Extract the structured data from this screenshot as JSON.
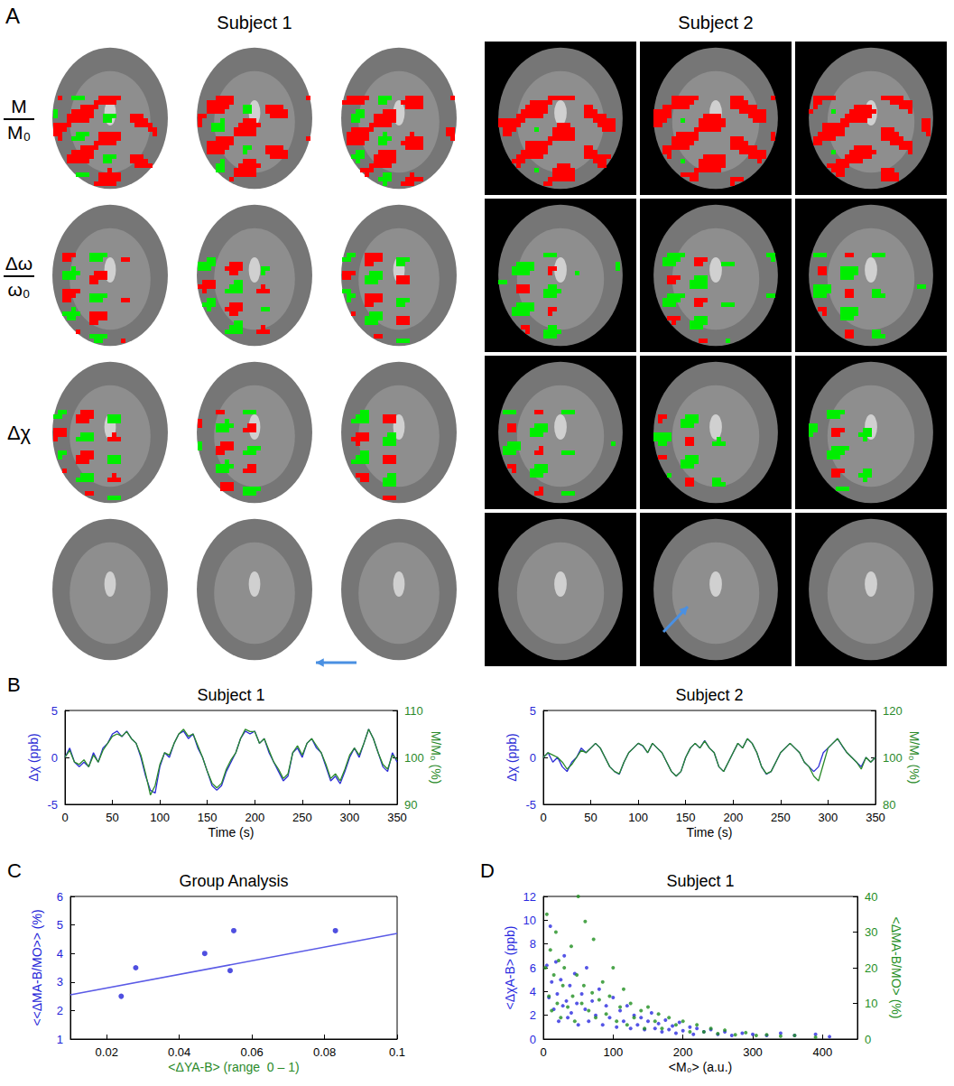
{
  "figure": {
    "panel_A": {
      "letter": "A",
      "columns": [
        "Subject 1",
        "Subject 2"
      ],
      "rows": [
        {
          "numerator": "M",
          "denominator": "M₀"
        },
        {
          "numerator": "Δω",
          "denominator": "ω₀"
        },
        {
          "label": "Δχ"
        }
      ]
    }
  },
  "chart_data": [
    {
      "panel": "B",
      "type": "line",
      "title": "Subject 1",
      "x_label": "Time (s)",
      "y_label": "Δχ (ppb)",
      "y2_label": "M/M₀ (%)",
      "x": [
        0,
        5,
        10,
        15,
        20,
        25,
        30,
        35,
        40,
        45,
        50,
        55,
        60,
        65,
        70,
        75,
        80,
        85,
        90,
        95,
        100,
        105,
        110,
        115,
        120,
        125,
        130,
        135,
        140,
        145,
        150,
        155,
        160,
        165,
        170,
        175,
        180,
        185,
        190,
        195,
        200,
        205,
        210,
        215,
        220,
        225,
        230,
        235,
        240,
        245,
        250,
        255,
        260,
        265,
        270,
        275,
        280,
        285,
        290,
        295,
        300,
        305,
        310,
        315,
        320,
        325,
        330,
        335,
        340,
        345,
        350
      ],
      "xlim": [
        0,
        350
      ],
      "xticks": [
        0,
        50,
        100,
        150,
        200,
        250,
        300,
        350
      ],
      "ylim": [
        -5,
        5
      ],
      "yticks": [
        -5,
        0,
        5
      ],
      "y2lim": [
        90,
        110
      ],
      "y2ticks": [
        90,
        100,
        110
      ],
      "series": [
        {
          "color": "#2b2bd6",
          "values": [
            0,
            1,
            -0.5,
            -1,
            -0.5,
            -1,
            0.5,
            -0.5,
            1,
            1.5,
            2.5,
            2.8,
            2.2,
            2.8,
            2,
            1.5,
            0,
            -2,
            -3.5,
            -3.8,
            -1,
            0.5,
            0,
            1.5,
            2.5,
            2.8,
            2,
            2.5,
            1,
            0,
            -1.5,
            -3,
            -3.5,
            -3,
            -1.5,
            -0.5,
            0.5,
            2,
            2.8,
            2.5,
            2.8,
            1.5,
            2,
            0.5,
            -0.5,
            -1.5,
            -2.5,
            -2,
            0.5,
            1,
            0,
            1.5,
            2,
            1,
            0.5,
            -1,
            -2.5,
            -2,
            -2.8,
            -1.5,
            0,
            1,
            0,
            1.5,
            3,
            2,
            0.5,
            -1,
            -1.5,
            0.5,
            -0.5
          ]
        },
        {
          "color": "#2a8a2a",
          "axis": "y2",
          "values": [
            100,
            101.5,
            99,
            98.5,
            99.5,
            98,
            100.5,
            99,
            101.5,
            103,
            104.5,
            105,
            104.5,
            105.5,
            104,
            103,
            100.5,
            96.5,
            92,
            94,
            98.5,
            101,
            100.5,
            103,
            105,
            106,
            104.5,
            105,
            102.5,
            100,
            97,
            94.5,
            93.5,
            94.5,
            97.5,
            99.5,
            101,
            104,
            106,
            105.5,
            105.5,
            103,
            104,
            101.5,
            99,
            97.5,
            95.5,
            96.5,
            101,
            102.5,
            100.5,
            103,
            104,
            102.5,
            101,
            98.5,
            95.5,
            96.5,
            95,
            97.5,
            100.5,
            102,
            100.5,
            103,
            106,
            104,
            101,
            98.5,
            97.5,
            100.5,
            99.5
          ]
        }
      ]
    },
    {
      "type": "line",
      "title": "Subject 2",
      "x_label": "Time (s)",
      "y_label": "Δχ (ppb)",
      "y2_label": "M/M₀ (%)",
      "x": [
        0,
        5,
        10,
        15,
        20,
        25,
        30,
        35,
        40,
        45,
        50,
        55,
        60,
        65,
        70,
        75,
        80,
        85,
        90,
        95,
        100,
        105,
        110,
        115,
        120,
        125,
        130,
        135,
        140,
        145,
        150,
        155,
        160,
        165,
        170,
        175,
        180,
        185,
        190,
        195,
        200,
        205,
        210,
        215,
        220,
        225,
        230,
        235,
        240,
        245,
        250,
        255,
        260,
        265,
        270,
        275,
        280,
        285,
        290,
        295,
        300,
        305,
        310,
        315,
        320,
        325,
        330,
        335,
        340,
        345,
        350
      ],
      "xlim": [
        0,
        350
      ],
      "xticks": [
        0,
        50,
        100,
        150,
        200,
        250,
        300,
        350
      ],
      "ylim": [
        -5,
        5
      ],
      "yticks": [
        -5,
        0,
        5
      ],
      "y2lim": [
        80,
        120
      ],
      "y2ticks": [
        80,
        100,
        120
      ],
      "series": [
        {
          "color": "#2b2bd6",
          "values": [
            0,
            0.5,
            -0.5,
            0,
            -1,
            -1.5,
            -0.5,
            0,
            1,
            0.5,
            1,
            1.5,
            1,
            0,
            -1,
            -1.5,
            -1.8,
            -0.5,
            0.5,
            1,
            1.5,
            1.2,
            0.5,
            1.5,
            1,
            0.5,
            -0.5,
            -1.5,
            -2,
            -1.5,
            0,
            1,
            1.5,
            1,
            1.8,
            1,
            0.5,
            -1,
            -1.5,
            -0.5,
            0.5,
            1.5,
            1,
            2,
            1.5,
            0.5,
            -1,
            -1.8,
            -1.5,
            -0.5,
            0.5,
            1,
            1.5,
            1,
            0.5,
            -0.5,
            -1,
            -1.5,
            -1,
            0.5,
            1,
            1.5,
            2,
            1.2,
            0.5,
            0,
            -0.5,
            -1,
            0,
            -0.5,
            0
          ]
        },
        {
          "color": "#2a8a2a",
          "axis": "y2",
          "values": [
            100,
            102,
            101,
            100,
            98,
            95,
            97,
            100,
            103,
            102,
            104,
            106,
            104,
            100,
            96,
            94,
            93,
            98,
            102,
            104,
            106,
            105,
            102,
            106,
            104,
            102,
            98,
            94,
            92,
            94,
            100,
            104,
            106,
            104,
            107,
            104,
            102,
            96,
            94,
            98,
            102,
            106,
            104,
            108,
            106,
            102,
            96,
            93,
            94,
            98,
            102,
            104,
            106,
            104,
            102,
            98,
            96,
            92,
            90,
            97,
            104,
            106,
            108,
            105,
            102,
            100,
            98,
            95,
            100,
            98,
            100
          ]
        }
      ]
    },
    {
      "panel": "C",
      "type": "scatter",
      "title": "Group Analysis",
      "x_label": "<ΔYA-B> (range  0 – 1)",
      "y_label": "<<ΔMA-B/MO>> (%)",
      "xlim": [
        0.01,
        0.1
      ],
      "xticks": [
        0.02,
        0.04,
        0.06,
        0.08,
        0.1
      ],
      "ylim": [
        1,
        6
      ],
      "yticks": [
        1,
        2,
        3,
        4,
        5,
        6
      ],
      "series": [
        {
          "type": "scatter",
          "color": "#2323d8",
          "x": [
            0.024,
            0.028,
            0.047,
            0.054,
            0.055,
            0.083
          ],
          "values": [
            2.5,
            3.5,
            4.0,
            3.4,
            4.8,
            4.8
          ]
        },
        {
          "type": "line",
          "color": "#5a5ae6",
          "x": [
            0.01,
            0.1
          ],
          "values": [
            2.55,
            4.7
          ]
        }
      ]
    },
    {
      "panel": "D",
      "type": "scatter",
      "title": "Subject 1",
      "x_label": "<M₀> (a.u.)",
      "y_label": "<ΔχA-B> (ppb)",
      "y2_label": "<ΔMA-B/MO> (%)",
      "xlim": [
        0,
        450
      ],
      "xticks": [
        0,
        100,
        200,
        300,
        400
      ],
      "ylim": [
        0,
        12
      ],
      "yticks": [
        0,
        2,
        4,
        6,
        8,
        10,
        12
      ],
      "y2lim": [
        0,
        40
      ],
      "y2ticks": [
        0,
        10,
        20,
        30,
        40
      ],
      "series": [
        {
          "color": "#2a2ae0",
          "points": [
            [
              5,
              6.2
            ],
            [
              8,
              3.5
            ],
            [
              10,
              9.5
            ],
            [
              12,
              4.8
            ],
            [
              15,
              2.5
            ],
            [
              18,
              6.5
            ],
            [
              20,
              3.8
            ],
            [
              22,
              1.5
            ],
            [
              25,
              5
            ],
            [
              28,
              2.8
            ],
            [
              30,
              7
            ],
            [
              33,
              3.2
            ],
            [
              35,
              1.8
            ],
            [
              38,
              4.5
            ],
            [
              40,
              2.2
            ],
            [
              45,
              5.5
            ],
            [
              48,
              3
            ],
            [
              50,
              1.2
            ],
            [
              55,
              3.8
            ],
            [
              60,
              2.5
            ],
            [
              62,
              6
            ],
            [
              65,
              1.5
            ],
            [
              70,
              3.2
            ],
            [
              75,
              2
            ],
            [
              80,
              4.2
            ],
            [
              85,
              1.2
            ],
            [
              90,
              2.8
            ],
            [
              95,
              1.8
            ],
            [
              100,
              3.5
            ],
            [
              105,
              1
            ],
            [
              110,
              2.4
            ],
            [
              115,
              1.5
            ],
            [
              120,
              2.8
            ],
            [
              125,
              0.9
            ],
            [
              130,
              2
            ],
            [
              135,
              1.2
            ],
            [
              140,
              1.8
            ],
            [
              145,
              0.8
            ],
            [
              150,
              1.5
            ],
            [
              155,
              2.2
            ],
            [
              160,
              0.9
            ],
            [
              165,
              1.3
            ],
            [
              170,
              0.6
            ],
            [
              175,
              1.6
            ],
            [
              180,
              0.8
            ],
            [
              185,
              1.1
            ],
            [
              190,
              0.5
            ],
            [
              195,
              1.4
            ],
            [
              200,
              0.7
            ],
            [
              210,
              1.0
            ],
            [
              215,
              0.4
            ],
            [
              220,
              0.9
            ],
            [
              230,
              0.6
            ],
            [
              240,
              0.8
            ],
            [
              250,
              0.4
            ],
            [
              260,
              0.6
            ],
            [
              270,
              0.3
            ],
            [
              285,
              0.5
            ],
            [
              300,
              0.4
            ],
            [
              320,
              0.3
            ],
            [
              340,
              0.5
            ],
            [
              360,
              0.3
            ],
            [
              390,
              0.4
            ],
            [
              410,
              0.2
            ]
          ]
        },
        {
          "color": "#1f8f1f",
          "axis": "y2",
          "points": [
            [
              3,
              20
            ],
            [
              5,
              35
            ],
            [
              8,
              12
            ],
            [
              10,
              25
            ],
            [
              12,
              8
            ],
            [
              15,
              18
            ],
            [
              18,
              30
            ],
            [
              20,
              10
            ],
            [
              22,
              22
            ],
            [
              25,
              6
            ],
            [
              28,
              15
            ],
            [
              30,
              20
            ],
            [
              35,
              9
            ],
            [
              40,
              26
            ],
            [
              42,
              12
            ],
            [
              45,
              5
            ],
            [
              48,
              18
            ],
            [
              50,
              40
            ],
            [
              55,
              10
            ],
            [
              58,
              15
            ],
            [
              60,
              33
            ],
            [
              65,
              8
            ],
            [
              70,
              13
            ],
            [
              72,
              28
            ],
            [
              75,
              6
            ],
            [
              80,
              11
            ],
            [
              85,
              16
            ],
            [
              90,
              7
            ],
            [
              95,
              12
            ],
            [
              100,
              20
            ],
            [
              105,
              5
            ],
            [
              110,
              9
            ],
            [
              115,
              14
            ],
            [
              120,
              4
            ],
            [
              125,
              10
            ],
            [
              130,
              6
            ],
            [
              140,
              8
            ],
            [
              145,
              3
            ],
            [
              150,
              9
            ],
            [
              160,
              5
            ],
            [
              165,
              7
            ],
            [
              170,
              3
            ],
            [
              180,
              6
            ],
            [
              190,
              4
            ],
            [
              200,
              5
            ],
            [
              210,
              2
            ],
            [
              220,
              4
            ],
            [
              230,
              2
            ],
            [
              240,
              3
            ],
            [
              250,
              1.5
            ],
            [
              260,
              2.5
            ],
            [
              275,
              1.2
            ],
            [
              290,
              1.8
            ],
            [
              305,
              1
            ],
            [
              320,
              1.2
            ],
            [
              340,
              0.8
            ],
            [
              360,
              1
            ],
            [
              390,
              0.5
            ]
          ]
        }
      ]
    }
  ]
}
